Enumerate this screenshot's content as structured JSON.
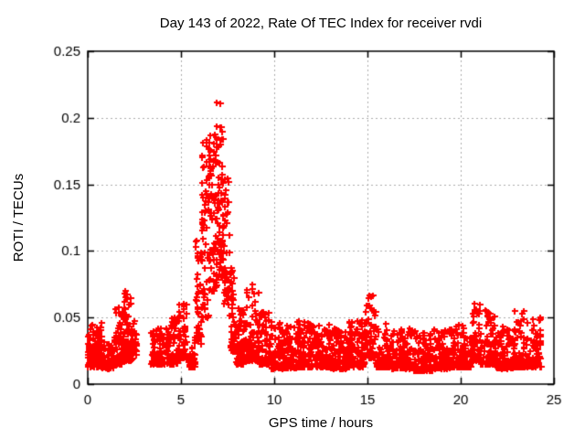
{
  "chart_data": {
    "type": "scatter",
    "title": "Day 143 of 2022, Rate Of TEC Index for receiver rvdi",
    "day_of_year": 143,
    "year": 2022,
    "receiver": "rvdi",
    "xlabel": "GPS time / hours",
    "ylabel": "ROTI / TECUs",
    "xlim": [
      0,
      25
    ],
    "ylim": [
      0,
      0.25
    ],
    "xticks": [
      0,
      5,
      10,
      15,
      20,
      25
    ],
    "xtick_labels": [
      "0",
      "5",
      "10",
      "15",
      "20",
      "25"
    ],
    "yticks": [
      0,
      0.05,
      0.1,
      0.15,
      0.2,
      0.25
    ],
    "ytick_labels": [
      "0",
      "0.05",
      "0.1",
      "0.15",
      "0.2",
      "0.25"
    ],
    "grid": true,
    "grid_style": "dotted",
    "grid_color": "#ababab",
    "legend_position": "none",
    "marker": "plus",
    "marker_color": "#ff0000",
    "axis_color": "#000000",
    "background_color": "#ffffff",
    "data_time_range_hours": [
      0,
      24.3
    ],
    "data_gap_hours": [
      2.6,
      3.3
    ],
    "baseline_level_tecus": [
      0.012,
      0.045
    ],
    "peaks": [
      {
        "time": 7.1,
        "value": 0.212,
        "note": "main peak"
      },
      {
        "time": 2.1,
        "value": 0.072
      },
      {
        "time": 5.1,
        "value": 0.065
      },
      {
        "time": 8.8,
        "value": 0.075
      },
      {
        "time": 15.2,
        "value": 0.068
      },
      {
        "time": 20.9,
        "value": 0.063
      },
      {
        "time": 23.2,
        "value": 0.055
      }
    ],
    "rng_seed": 42,
    "envelope_comment": "segments of the scatter cloud: [t_start_h, t_end_h, roti_min, roti_max, n_points, vertical_shape_exponent]",
    "envelope": [
      [
        0.0,
        0.35,
        0.013,
        0.045,
        55,
        2
      ],
      [
        0.35,
        0.75,
        0.013,
        0.047,
        60,
        2
      ],
      [
        0.75,
        1.4,
        0.012,
        0.032,
        55,
        2
      ],
      [
        1.4,
        1.95,
        0.015,
        0.058,
        70,
        2
      ],
      [
        1.95,
        2.35,
        0.018,
        0.072,
        60,
        2
      ],
      [
        2.35,
        2.6,
        0.018,
        0.048,
        25,
        2
      ],
      [
        3.3,
        4.4,
        0.015,
        0.042,
        110,
        2
      ],
      [
        4.4,
        4.85,
        0.015,
        0.05,
        50,
        2
      ],
      [
        4.85,
        5.35,
        0.02,
        0.065,
        60,
        2
      ],
      [
        5.35,
        5.75,
        0.013,
        0.035,
        30,
        2
      ],
      [
        5.75,
        6.1,
        0.03,
        0.11,
        45,
        1.5
      ],
      [
        6.1,
        6.5,
        0.05,
        0.185,
        60,
        1.4
      ],
      [
        6.5,
        6.9,
        0.07,
        0.19,
        70,
        1.4
      ],
      [
        6.9,
        7.3,
        0.08,
        0.212,
        80,
        1.6
      ],
      [
        7.3,
        7.6,
        0.06,
        0.16,
        40,
        1.5
      ],
      [
        7.6,
        7.95,
        0.025,
        0.09,
        45,
        1.8
      ],
      [
        7.95,
        8.5,
        0.015,
        0.06,
        70,
        2
      ],
      [
        8.5,
        9.2,
        0.018,
        0.075,
        85,
        2.2
      ],
      [
        9.2,
        9.8,
        0.015,
        0.058,
        70,
        2.2
      ],
      [
        9.8,
        10.3,
        0.012,
        0.05,
        60,
        2.2
      ],
      [
        10.3,
        11.2,
        0.012,
        0.045,
        100,
        2
      ],
      [
        11.2,
        12.0,
        0.013,
        0.048,
        90,
        2.2
      ],
      [
        12.0,
        13.0,
        0.013,
        0.045,
        110,
        2.2
      ],
      [
        13.0,
        14.0,
        0.012,
        0.042,
        110,
        2.2
      ],
      [
        14.0,
        14.9,
        0.013,
        0.048,
        100,
        2.2
      ],
      [
        14.9,
        15.45,
        0.02,
        0.068,
        55,
        2
      ],
      [
        15.45,
        16.2,
        0.013,
        0.048,
        80,
        2.2
      ],
      [
        16.2,
        17.5,
        0.012,
        0.042,
        130,
        2.2
      ],
      [
        17.5,
        18.5,
        0.01,
        0.04,
        105,
        2.2
      ],
      [
        18.5,
        19.5,
        0.012,
        0.042,
        105,
        2.2
      ],
      [
        19.5,
        20.6,
        0.013,
        0.045,
        115,
        2.2
      ],
      [
        20.6,
        21.05,
        0.018,
        0.063,
        50,
        2
      ],
      [
        21.05,
        21.9,
        0.015,
        0.056,
        90,
        2.2
      ],
      [
        21.9,
        22.8,
        0.012,
        0.045,
        95,
        2.2
      ],
      [
        22.8,
        23.6,
        0.013,
        0.055,
        85,
        2.2
      ],
      [
        23.6,
        24.3,
        0.013,
        0.052,
        75,
        2.2
      ]
    ]
  }
}
